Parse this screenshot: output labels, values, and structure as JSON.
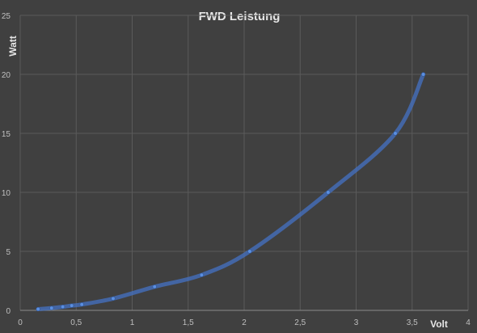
{
  "chart_data": {
    "type": "scatter",
    "title": "FWD Leistung",
    "xlabel": "Volt",
    "ylabel": "Watt",
    "xlim": [
      0,
      4
    ],
    "ylim": [
      0,
      25
    ],
    "x_ticks": [
      "0",
      "0,5",
      "1",
      "1,5",
      "2",
      "2,5",
      "3",
      "3,5",
      "4"
    ],
    "y_ticks": [
      "0",
      "5",
      "10",
      "15",
      "20",
      "25"
    ],
    "x_tick_values": [
      0,
      0.5,
      1,
      1.5,
      2,
      2.5,
      3,
      3.5,
      4
    ],
    "y_tick_values": [
      0,
      5,
      10,
      15,
      20,
      25
    ],
    "grid": true,
    "smooth_line": true,
    "series": [
      {
        "color": "#4472c4",
        "points": [
          {
            "x": 0.16,
            "y": 0.1
          },
          {
            "x": 0.28,
            "y": 0.2
          },
          {
            "x": 0.38,
            "y": 0.3
          },
          {
            "x": 0.46,
            "y": 0.4
          },
          {
            "x": 0.55,
            "y": 0.5
          },
          {
            "x": 0.83,
            "y": 1.0
          },
          {
            "x": 1.2,
            "y": 2.0
          },
          {
            "x": 1.62,
            "y": 3.0
          },
          {
            "x": 2.05,
            "y": 5.0
          },
          {
            "x": 2.75,
            "y": 10.0
          },
          {
            "x": 3.35,
            "y": 15.0
          },
          {
            "x": 3.6,
            "y": 20.0
          }
        ]
      }
    ]
  }
}
